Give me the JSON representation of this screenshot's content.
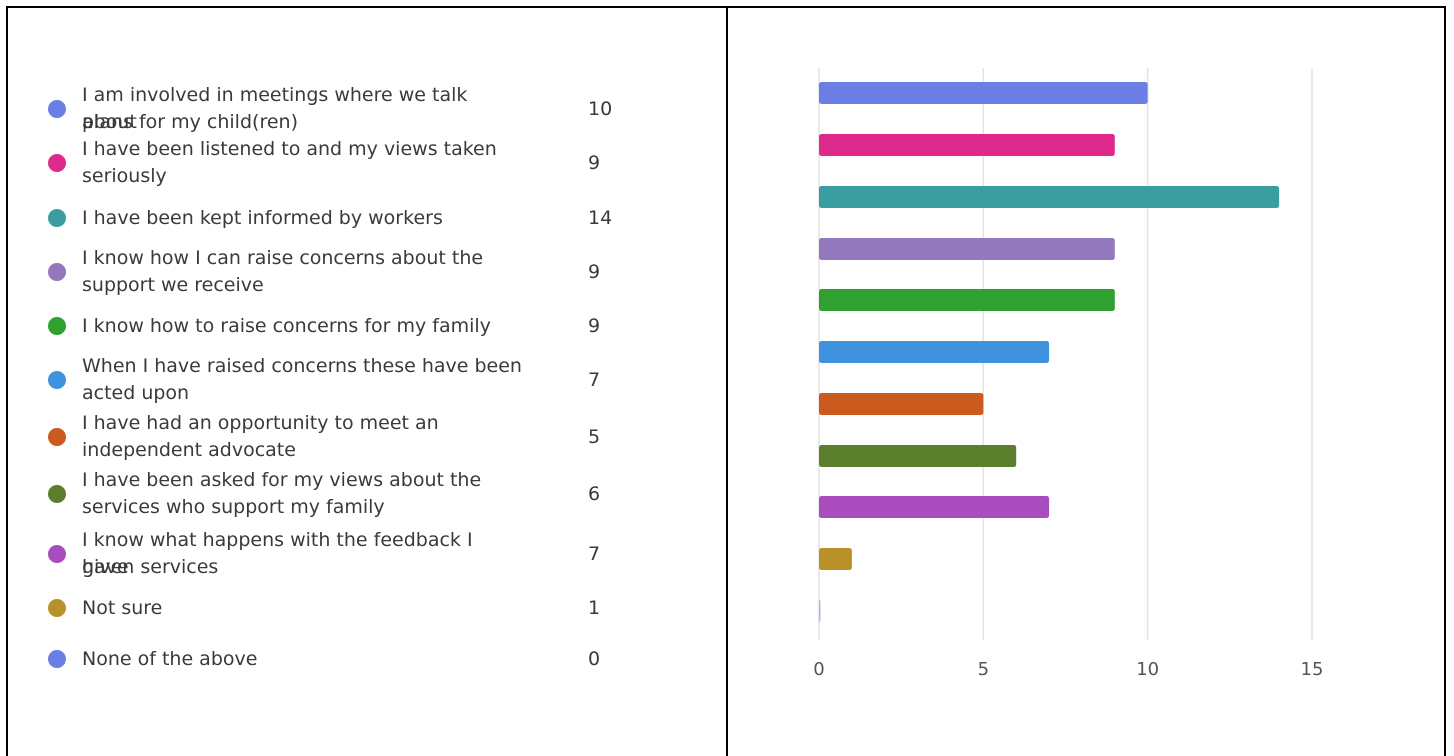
{
  "chart_data": {
    "type": "bar",
    "orientation": "horizontal",
    "categories": [
      "I am involved in meetings where we talk about plans for my child(ren)",
      "I have been listened to and my views taken seriously",
      "I have been kept informed by workers",
      "I know how I can raise concerns about the support we receive",
      "I know how to raise concerns for my family",
      "When I have raised concerns these have been acted upon",
      "I have had an opportunity to meet an independent advocate",
      "I have been asked for my views about the services who support my family",
      "I know what happens with the feedback I have given services",
      "Not sure",
      "None of the above"
    ],
    "values": [
      10,
      9,
      14,
      9,
      9,
      7,
      5,
      6,
      7,
      1,
      0
    ],
    "value_labels": [
      "10",
      "9",
      "14",
      "9",
      "9",
      "7",
      "5",
      "6",
      "7",
      "1",
      "0"
    ],
    "colors": [
      "#6b7ee6",
      "#de2a8a",
      "#3a9ea1",
      "#9378bd",
      "#30a030",
      "#3f93de",
      "#cb5a1e",
      "#5b7f2c",
      "#a94cbe",
      "#b89228",
      "#6b7ee6"
    ],
    "xlim": [
      0,
      15
    ],
    "xticks": [
      "0",
      "5",
      "10",
      "15"
    ],
    "grid": true,
    "legend_position": "left"
  },
  "legend": {
    "items": [
      {
        "lines": [
          "I am involved in meetings where we talk about",
          "plans for my child(ren)"
        ],
        "value": "10"
      },
      {
        "lines": [
          "I have been listened to and my views taken",
          "seriously"
        ],
        "value": "9"
      },
      {
        "lines": [
          "I have been kept informed by workers"
        ],
        "value": "14"
      },
      {
        "lines": [
          "I know how I can raise concerns about the",
          "support we receive"
        ],
        "value": "9"
      },
      {
        "lines": [
          "I know how to raise concerns for my family"
        ],
        "value": "9"
      },
      {
        "lines": [
          "When I have raised concerns these have been",
          "acted upon"
        ],
        "value": "7"
      },
      {
        "lines": [
          "I have had an opportunity to meet an",
          "independent advocate"
        ],
        "value": "5"
      },
      {
        "lines": [
          "I have been asked for my views about the",
          "services who support my family"
        ],
        "value": "6"
      },
      {
        "lines": [
          "I know what happens with the feedback I have",
          "given services"
        ],
        "value": "7"
      },
      {
        "lines": [
          "Not sure"
        ],
        "value": "1"
      },
      {
        "lines": [
          "None of the above"
        ],
        "value": "0"
      }
    ]
  }
}
